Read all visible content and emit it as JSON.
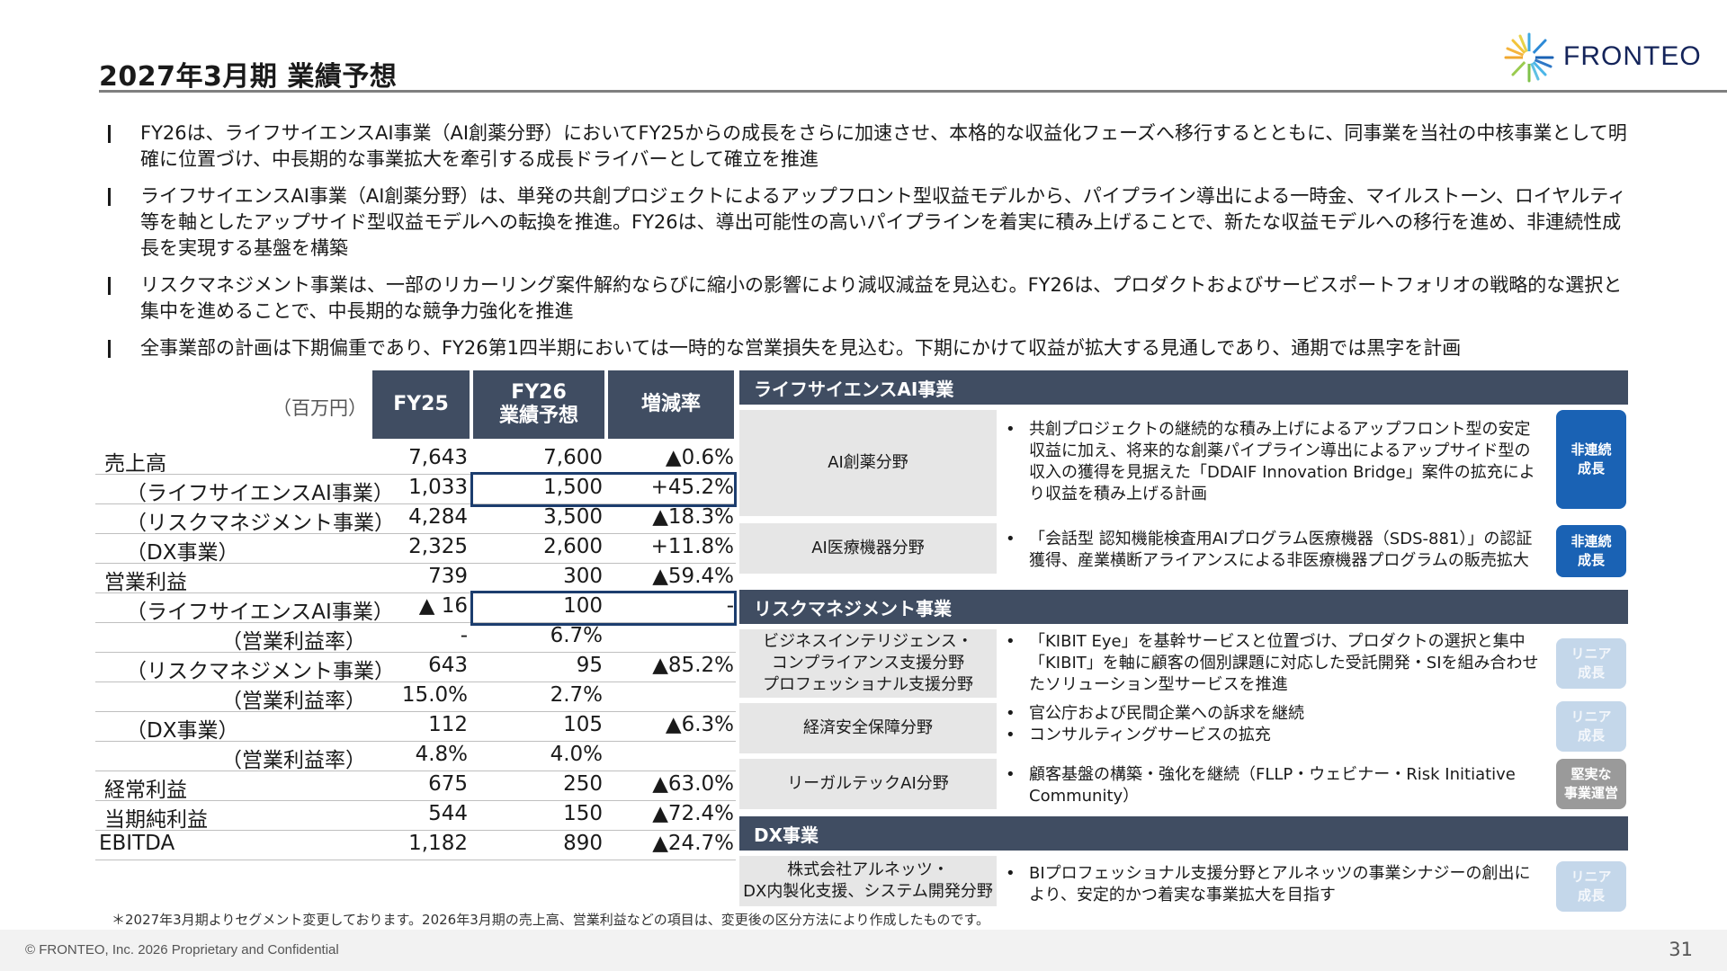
{
  "title": "2027年3月期 業績予想",
  "logo": {
    "text": "FRONTEO"
  },
  "bullets": [
    "FY26は、ライフサイエンスAI事業（AI創薬分野）においてFY25からの成長をさらに加速させ、本格的な収益化フェーズへ移行するとともに、同事業を当社の中核事業として明確に位置づけ、中長期的な事業拡大を牽引する成長ドライバーとして確立を推進",
    "ライフサイエンスAI事業（AI創薬分野）は、単発の共創プロジェクトによるアップフロント型収益モデルから、パイプライン導出による一時金、マイルストーン、ロイヤルティ等を軸としたアップサイド型収益モデルへの転換を推進。FY26は、導出可能性の高いパイプラインを着実に積み上げることで、新たな収益モデルへの移行を進め、非連続性成長を実現する基盤を構築",
    "リスクマネジメント事業は、一部のリカーリング案件解約ならびに縮小の影響により減収減益を見込む。FY26は、プロダクトおよびサービスポートフォリオの戦略的な選択と集中を進めることで、中長期的な競争力強化を推進",
    "全事業部の計画は下期偏重であり、FY26第1四半期においては一時的な営業損失を見込む。下期にかけて収益が拡大する見通しであり、通期では黒字を計画"
  ],
  "table": {
    "unit": "（百万円）",
    "headers": {
      "fy25": "FY25",
      "fy26_line1": "FY26",
      "fy26_line2": "業績予想",
      "change": "増減率"
    },
    "rows": [
      {
        "label": "売上高",
        "fy25": "7,643",
        "fy26": "7,600",
        "change": "▲0.6%"
      },
      {
        "label": "（ライフサイエンスAI事業）",
        "fy25": "1,033",
        "fy26": "1,500",
        "change": "+45.2%"
      },
      {
        "label": "（リスクマネジメント事業）",
        "fy25": "4,284",
        "fy26": "3,500",
        "change": "▲18.3%"
      },
      {
        "label": "（DX事業）",
        "fy25": "2,325",
        "fy26": "2,600",
        "change": "+11.8%"
      },
      {
        "label": "営業利益",
        "fy25": "739",
        "fy26": "300",
        "change": "▲59.4%"
      },
      {
        "label": "（ライフサイエンスAI事業）",
        "fy25": "▲ 16",
        "fy26": "100",
        "change": "-"
      },
      {
        "label": "（営業利益率）",
        "fy25": "-",
        "fy26": "6.7%",
        "change": ""
      },
      {
        "label": "（リスクマネジメント事業）",
        "fy25": "643",
        "fy26": "95",
        "change": "▲85.2%"
      },
      {
        "label": "（営業利益率）",
        "fy25": "15.0%",
        "fy26": "2.7%",
        "change": ""
      },
      {
        "label": "（DX事業）",
        "fy25": "112",
        "fy26": "105",
        "change": "▲6.3%"
      },
      {
        "label": "（営業利益率）",
        "fy25": "4.8%",
        "fy26": "4.0%",
        "change": ""
      },
      {
        "label": "経常利益",
        "fy25": "675",
        "fy26": "250",
        "change": "▲63.0%"
      },
      {
        "label": "当期純利益",
        "fy25": "544",
        "fy26": "150",
        "change": "▲72.4%"
      },
      {
        "label": "EBITDA",
        "fy25": "1,182",
        "fy26": "890",
        "change": "▲24.7%"
      }
    ]
  },
  "footnote": "＊2027年3月期よりセグメント変更しております。2026年3月期の売上高、営業利益などの項目は、変更後の区分方法により作成したものです。",
  "segments": {
    "life_science": {
      "title": "ライフサイエンスAI事業",
      "items": [
        {
          "name": "AI創薬分野",
          "points": [
            "共創プロジェクトの継続的な積み上げによるアップフロント型の安定収益に加え、将来的な創薬パイプライン導出によるアップサイド型の収入の獲得を見据えた「DDAIF Innovation Bridge」案件の拡充により収益を積み上げる計画"
          ],
          "tag": "非連続\n成長"
        },
        {
          "name": "AI医療機器分野",
          "points": [
            "「会話型 認知機能検査用AIプログラム医療機器（SDS-881）」の認証獲得、産業横断アライアンスによる非医療機器プログラムの販売拡大"
          ],
          "tag": "非連続\n成長"
        }
      ]
    },
    "risk": {
      "title": "リスクマネジメント事業",
      "items": [
        {
          "name": "ビジネスインテリジェンス・\nコンプライアンス支援分野\nプロフェッショナル支援分野",
          "points": [
            "「KIBIT Eye」を基幹サービスと位置づけ、プロダクトの選択と集中「KIBIT」を軸に顧客の個別課題に対応した受託開発・SIを組み合わせたソリューション型サービスを推進"
          ],
          "tag": "リニア\n成長"
        },
        {
          "name": "経済安全保障分野",
          "points": [
            "官公庁および民間企業への訴求を継続",
            "コンサルティングサービスの拡充"
          ],
          "tag": "リニア\n成長"
        },
        {
          "name": "リーガルテックAI分野",
          "points": [
            "顧客基盤の構築・強化を継続（FLLP・ウェビナー・Risk Initiative Community）"
          ],
          "tag": "堅実な\n事業運営"
        }
      ]
    },
    "dx": {
      "title": "DX事業",
      "items": [
        {
          "name": "株式会社アルネッツ・\nDX内製化支援、システム開発分野",
          "points": [
            "BIプロフェッショナル支援分野とアルネッツの事業シナジーの創出により、安定的かつ着実な事業拡大を目指す"
          ],
          "tag": "リニア\n成長"
        }
      ]
    }
  },
  "footer": {
    "copyright": "© FRONTEO, Inc. 2026  Proprietary and Confidential",
    "page": "31"
  },
  "colors": {
    "header_fill": "#404d62",
    "tag_dark": "#1a62b4",
    "tag_light": "#c4d7ea",
    "tag_grey": "#9a9a9a",
    "highlight_border": "#1c3d6e"
  }
}
